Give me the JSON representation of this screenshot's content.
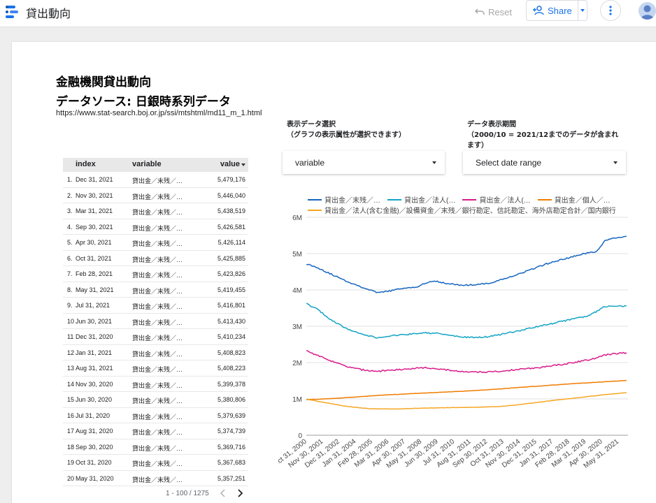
{
  "app": {
    "title": "貸出動向"
  },
  "header": {
    "reset_label": "Reset",
    "share_label": "Share",
    "colors": {
      "accent": "#1a73e8"
    }
  },
  "report": {
    "title": "金融機関貸出動向",
    "subtitle": "データソース: 日銀時系列データ",
    "url": "https://www.stat-search.boj.or.jp/ssi/mtshtml/md11_m_1.html"
  },
  "controls": {
    "dimension": {
      "label_line1": "表示データ選択",
      "label_line2": "（グラフの表示属性が選択できます）",
      "value": "variable"
    },
    "daterange": {
      "label_line1": "データ表示期間",
      "label_line2": "（2000/10 = 2021/12までのデータが含まれ",
      "label_line3": "ます）",
      "value": "Select date range"
    }
  },
  "table": {
    "columns": [
      "index",
      "variable",
      "value"
    ],
    "rows": [
      {
        "n": "1.",
        "date": "Dec 31, 2021",
        "variable": "貸出金／末残／…",
        "value": "5,479,176"
      },
      {
        "n": "2.",
        "date": "Nov 30, 2021",
        "variable": "貸出金／末残／…",
        "value": "5,446,040"
      },
      {
        "n": "3.",
        "date": "Mar 31, 2021",
        "variable": "貸出金／末残／…",
        "value": "5,438,519"
      },
      {
        "n": "4.",
        "date": "Sep 30, 2021",
        "variable": "貸出金／末残／…",
        "value": "5,426,581"
      },
      {
        "n": "5.",
        "date": "Apr 30, 2021",
        "variable": "貸出金／末残／…",
        "value": "5,426,114"
      },
      {
        "n": "6.",
        "date": "Oct 31, 2021",
        "variable": "貸出金／末残／…",
        "value": "5,425,885"
      },
      {
        "n": "7.",
        "date": "Feb 28, 2021",
        "variable": "貸出金／末残／…",
        "value": "5,423,826"
      },
      {
        "n": "8.",
        "date": "May 31, 2021",
        "variable": "貸出金／末残／…",
        "value": "5,419,455"
      },
      {
        "n": "9.",
        "date": "Jul 31, 2021",
        "variable": "貸出金／末残／…",
        "value": "5,416,801"
      },
      {
        "n": "10.",
        "date": "Jun 30, 2021",
        "variable": "貸出金／末残／…",
        "value": "5,413,430"
      },
      {
        "n": "11.",
        "date": "Dec 31, 2020",
        "variable": "貸出金／末残／…",
        "value": "5,410,234"
      },
      {
        "n": "12.",
        "date": "Jan 31, 2021",
        "variable": "貸出金／末残／…",
        "value": "5,408,823"
      },
      {
        "n": "13.",
        "date": "Aug 31, 2021",
        "variable": "貸出金／末残／…",
        "value": "5,408,223"
      },
      {
        "n": "14.",
        "date": "Nov 30, 2020",
        "variable": "貸出金／末残／…",
        "value": "5,399,378"
      },
      {
        "n": "15.",
        "date": "Jun 30, 2020",
        "variable": "貸出金／末残／…",
        "value": "5,380,806"
      },
      {
        "n": "16.",
        "date": "Jul 31, 2020",
        "variable": "貸出金／末残／…",
        "value": "5,379,639"
      },
      {
        "n": "17.",
        "date": "Aug 31, 2020",
        "variable": "貸出金／末残／…",
        "value": "5,374,739"
      },
      {
        "n": "18.",
        "date": "Sep 30, 2020",
        "variable": "貸出金／末残／…",
        "value": "5,369,716"
      },
      {
        "n": "19.",
        "date": "Oct 31, 2020",
        "variable": "貸出金／末残／…",
        "value": "5,367,683"
      },
      {
        "n": "20.",
        "date": "May 31, 2020",
        "variable": "貸出金／末残／…",
        "value": "5,357,251"
      }
    ],
    "pagination": "1 - 100 / 1275"
  },
  "chart_data": {
    "type": "line",
    "ylim": [
      0,
      6000000
    ],
    "y_ticks": [
      "0",
      "1M",
      "2M",
      "3M",
      "4M",
      "5M",
      "6M"
    ],
    "x_tick_labels": [
      "Oct 31, 2000",
      "Nov 30, 2001",
      "Dec 31, 2002",
      "Jan 31, 2004",
      "Feb 28, 2005",
      "Mar 31, 2006",
      "Apr 30, 2007",
      "May 31, 2008",
      "Jun 30, 2009",
      "Jul 31, 2010",
      "Aug 31, 2011",
      "Sep 30, 2012",
      "Oct 31, 2013",
      "Nov 30, 2014",
      "Dec 31, 2015",
      "Jan 31, 2017",
      "Feb 28, 2018",
      "Mar 31, 2019",
      "Apr 30, 2020",
      "May 31, 2021"
    ],
    "x_range": [
      "2000-10",
      "2021-12"
    ],
    "series": [
      {
        "name": "貸出金／末残／…",
        "color": "#1565c0",
        "points": [
          [
            2000.8,
            4720000
          ],
          [
            2001.5,
            4620000
          ],
          [
            2002.5,
            4420000
          ],
          [
            2003.5,
            4230000
          ],
          [
            2004.5,
            4070000
          ],
          [
            2005.5,
            3920000
          ],
          [
            2006.0,
            3950000
          ],
          [
            2007.0,
            4030000
          ],
          [
            2008.0,
            4080000
          ],
          [
            2008.8,
            4200000
          ],
          [
            2009.3,
            4250000
          ],
          [
            2010.0,
            4180000
          ],
          [
            2011.0,
            4130000
          ],
          [
            2012.0,
            4140000
          ],
          [
            2013.0,
            4200000
          ],
          [
            2014.0,
            4330000
          ],
          [
            2015.0,
            4470000
          ],
          [
            2016.0,
            4620000
          ],
          [
            2017.0,
            4770000
          ],
          [
            2018.0,
            4870000
          ],
          [
            2019.0,
            4990000
          ],
          [
            2019.9,
            5050000
          ],
          [
            2020.5,
            5370000
          ],
          [
            2021.0,
            5410000
          ],
          [
            2021.9,
            5479176
          ]
        ]
      },
      {
        "name": "貸出金／法人(…",
        "color": "#12a4c4",
        "points": [
          [
            2000.8,
            3620000
          ],
          [
            2001.5,
            3470000
          ],
          [
            2002.5,
            3150000
          ],
          [
            2003.5,
            2920000
          ],
          [
            2004.5,
            2780000
          ],
          [
            2005.5,
            2680000
          ],
          [
            2006.5,
            2740000
          ],
          [
            2007.5,
            2780000
          ],
          [
            2008.5,
            2820000
          ],
          [
            2009.5,
            2800000
          ],
          [
            2010.5,
            2730000
          ],
          [
            2011.5,
            2690000
          ],
          [
            2012.5,
            2700000
          ],
          [
            2013.5,
            2760000
          ],
          [
            2014.5,
            2850000
          ],
          [
            2015.5,
            2940000
          ],
          [
            2016.5,
            3030000
          ],
          [
            2017.5,
            3120000
          ],
          [
            2018.5,
            3210000
          ],
          [
            2019.5,
            3300000
          ],
          [
            2020.4,
            3540000
          ],
          [
            2021.0,
            3560000
          ],
          [
            2021.9,
            3560000
          ]
        ]
      },
      {
        "name": "貸出金／法人(…",
        "color": "#d81b8a",
        "points": [
          [
            2000.8,
            2330000
          ],
          [
            2001.5,
            2200000
          ],
          [
            2002.5,
            2040000
          ],
          [
            2003.5,
            1880000
          ],
          [
            2004.5,
            1800000
          ],
          [
            2005.5,
            1760000
          ],
          [
            2006.5,
            1790000
          ],
          [
            2007.5,
            1830000
          ],
          [
            2008.5,
            1860000
          ],
          [
            2009.5,
            1830000
          ],
          [
            2010.5,
            1770000
          ],
          [
            2011.5,
            1740000
          ],
          [
            2012.5,
            1740000
          ],
          [
            2013.5,
            1760000
          ],
          [
            2014.5,
            1800000
          ],
          [
            2015.5,
            1840000
          ],
          [
            2016.5,
            1880000
          ],
          [
            2017.5,
            1940000
          ],
          [
            2018.5,
            2010000
          ],
          [
            2019.5,
            2080000
          ],
          [
            2020.4,
            2200000
          ],
          [
            2021.0,
            2240000
          ],
          [
            2021.9,
            2270000
          ]
        ]
      },
      {
        "name": "貸出金／個人／…",
        "color": "#ef7c00",
        "points": [
          [
            2000.8,
            980000
          ],
          [
            2002.0,
            1000000
          ],
          [
            2004.0,
            1050000
          ],
          [
            2006.0,
            1110000
          ],
          [
            2008.0,
            1150000
          ],
          [
            2010.0,
            1190000
          ],
          [
            2012.0,
            1230000
          ],
          [
            2014.0,
            1290000
          ],
          [
            2016.0,
            1350000
          ],
          [
            2018.0,
            1410000
          ],
          [
            2020.0,
            1460000
          ],
          [
            2021.9,
            1510000
          ]
        ]
      },
      {
        "name": "貸出金／法人(含む金融)／設備資金／末残／銀行勘定、信託勘定、海外店勘定合計／国内銀行",
        "color": "#f6a623",
        "points": [
          [
            2000.8,
            990000
          ],
          [
            2002.0,
            900000
          ],
          [
            2003.5,
            790000
          ],
          [
            2005.0,
            730000
          ],
          [
            2006.5,
            720000
          ],
          [
            2008.0,
            740000
          ],
          [
            2010.0,
            760000
          ],
          [
            2012.0,
            770000
          ],
          [
            2013.5,
            790000
          ],
          [
            2015.0,
            850000
          ],
          [
            2016.5,
            930000
          ],
          [
            2018.0,
            1000000
          ],
          [
            2019.5,
            1070000
          ],
          [
            2020.5,
            1120000
          ],
          [
            2021.9,
            1170000
          ]
        ]
      }
    ]
  }
}
